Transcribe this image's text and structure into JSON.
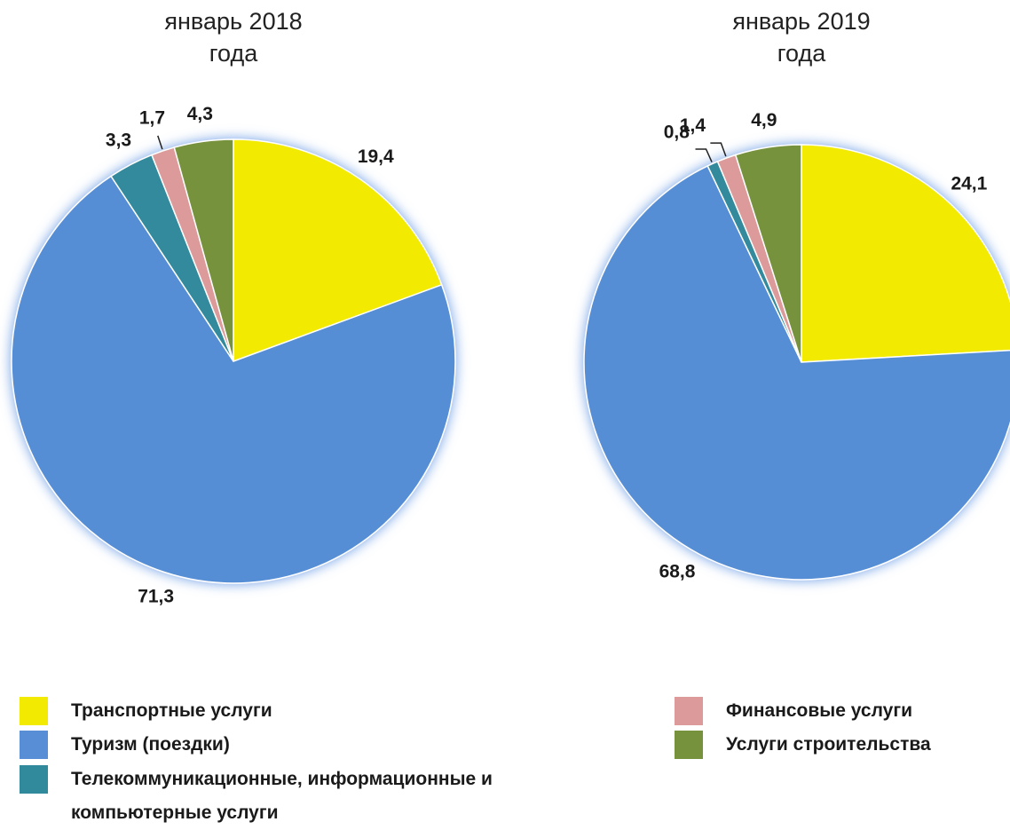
{
  "chart_data": [
    {
      "type": "pie",
      "title": "январь 2018 года",
      "values": [
        19.4,
        71.3,
        3.3,
        1.7,
        4.3
      ],
      "value_labels": [
        "19,4",
        "71,3",
        "3,3",
        "1,7",
        "4,3"
      ]
    },
    {
      "type": "pie",
      "title": "январь 2019 года",
      "values": [
        24.1,
        68.8,
        0.8,
        1.4,
        4.9
      ],
      "value_labels": [
        "24,1",
        "68,8",
        "0,8",
        "1,4",
        "4,9"
      ]
    }
  ],
  "legend": {
    "items": [
      "Транспортные услуги",
      "Туризм (поездки)",
      "Телекоммуникационные, информационные и компьютерные услуги",
      "Финансовые услуги",
      "Услуги строительства"
    ],
    "colors": [
      "#f2ea00",
      "#578ed6",
      "#318a9c",
      "#dc9a9a",
      "#77923c"
    ]
  }
}
